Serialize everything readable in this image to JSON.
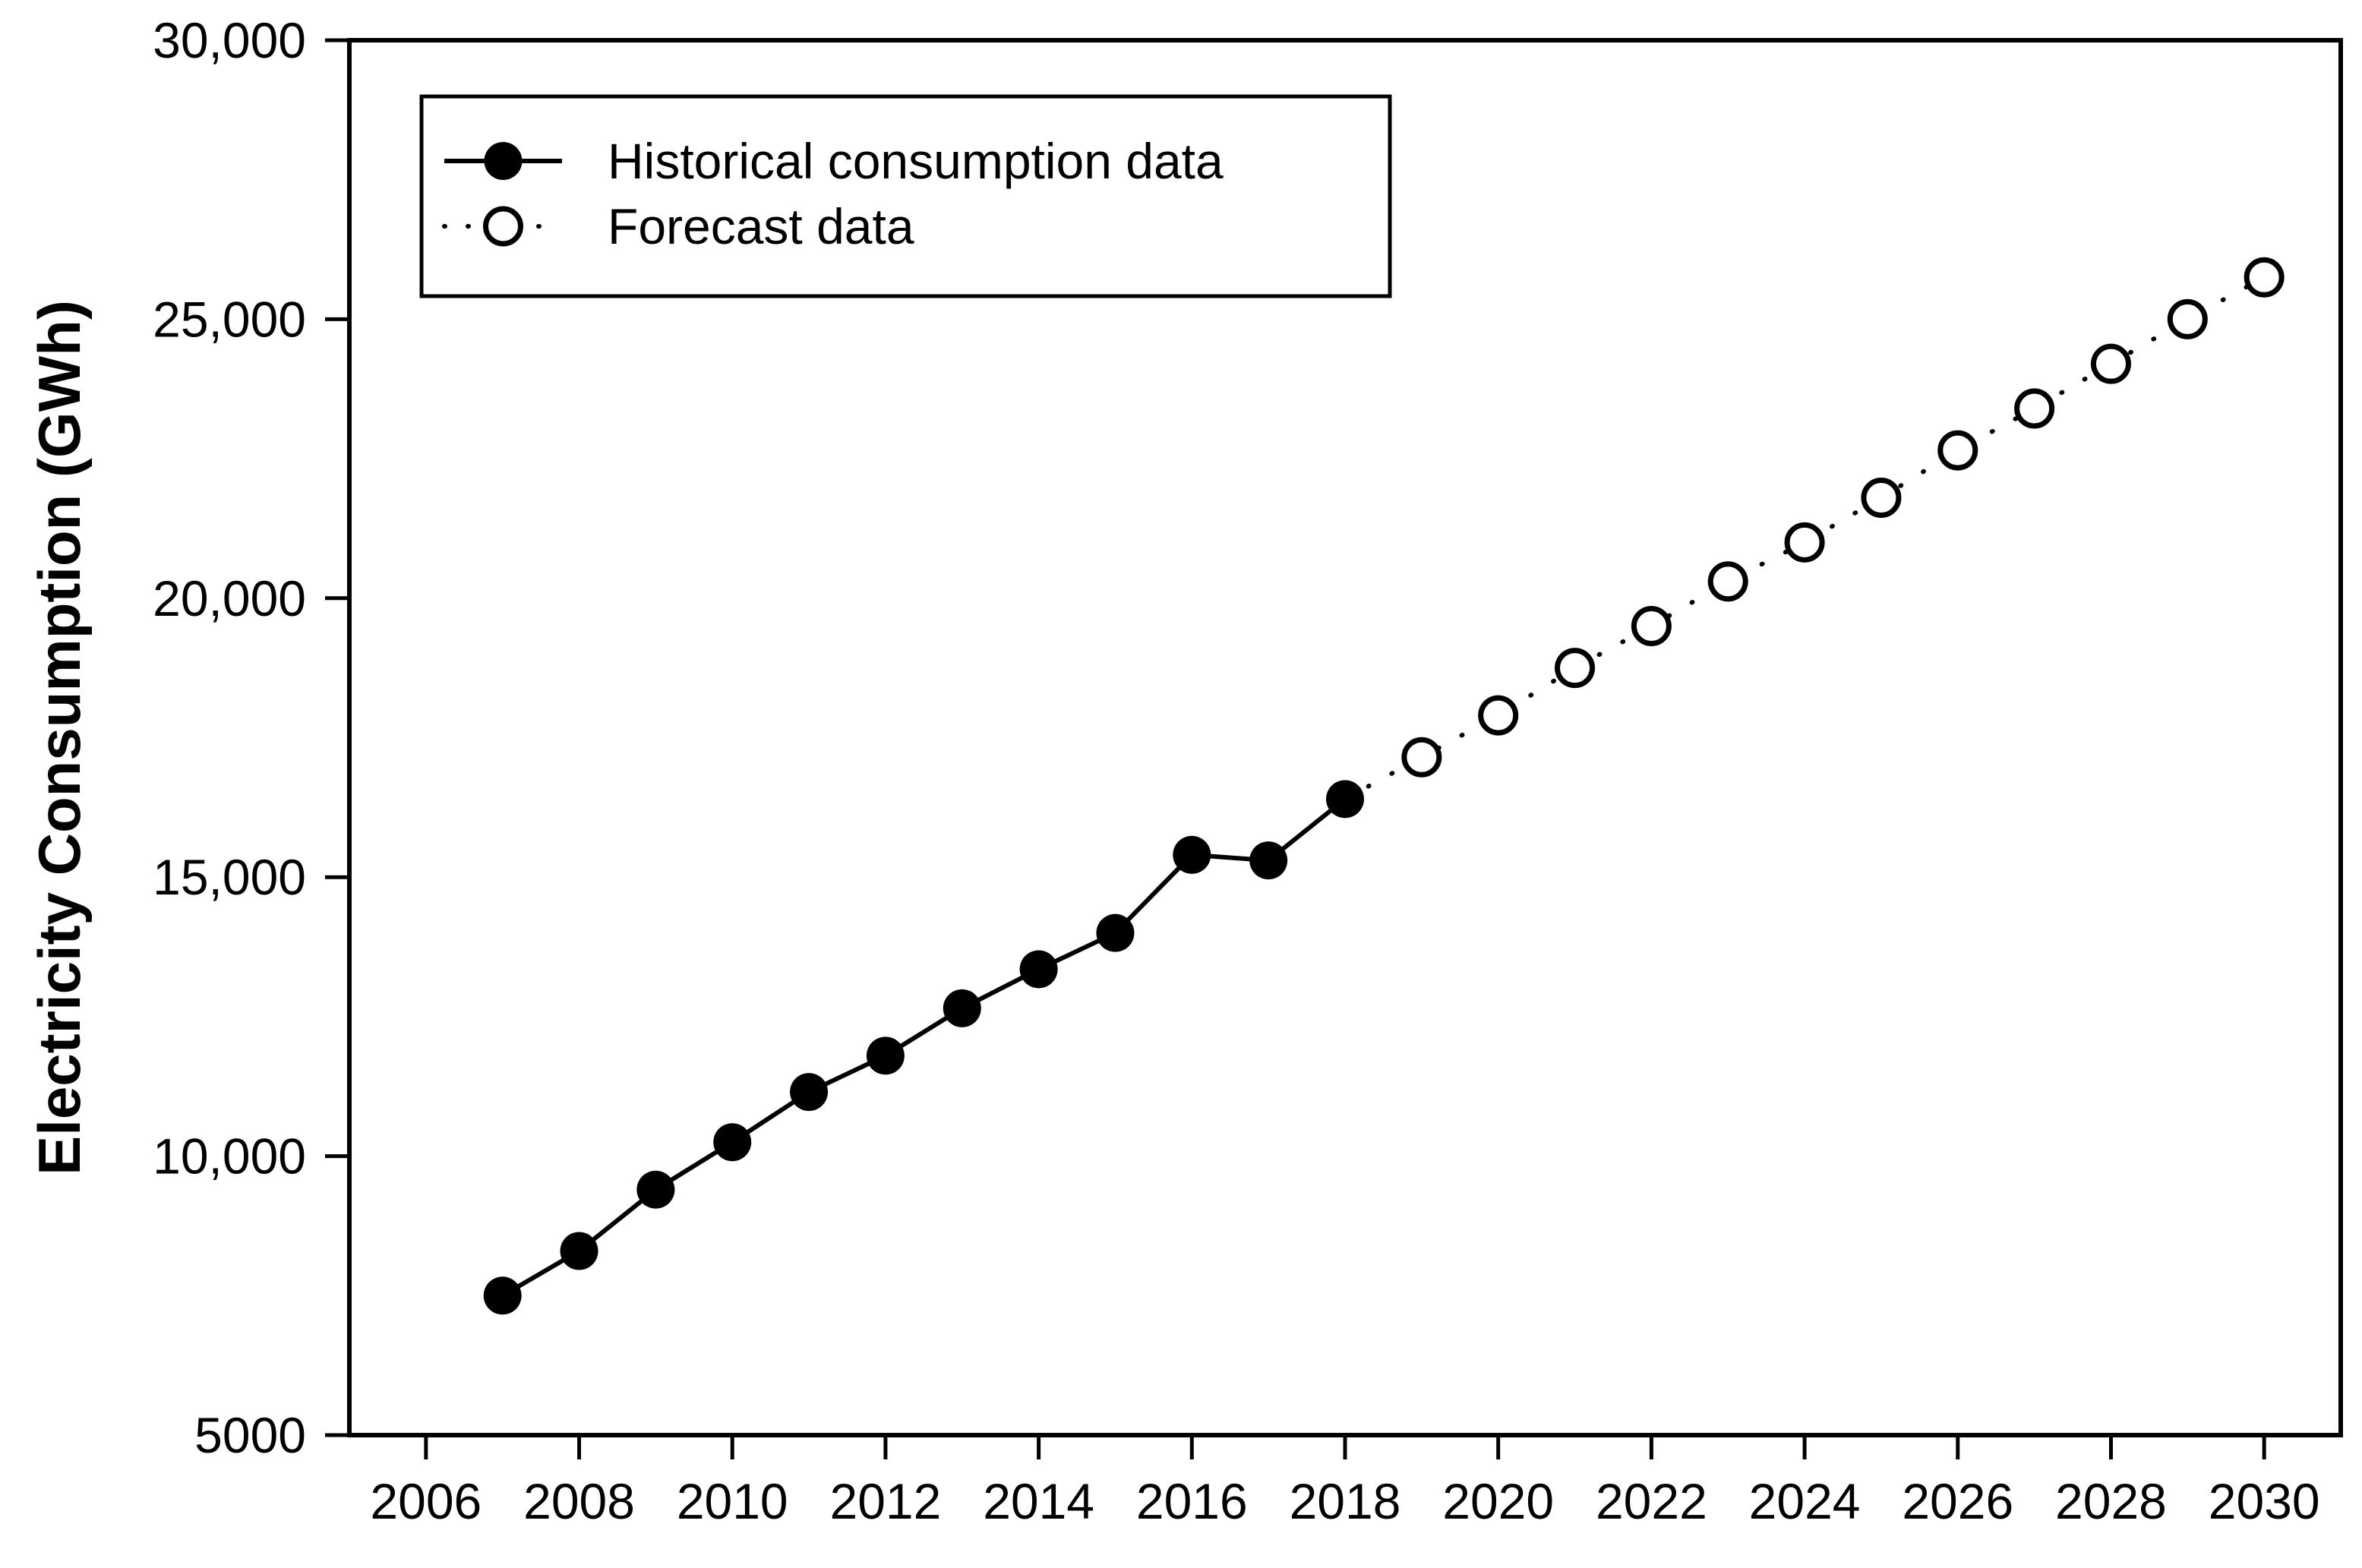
{
  "chart_data": {
    "type": "line",
    "title": "",
    "xlabel": "",
    "ylabel": "Electricity Consumption (GWh)",
    "xlim": [
      2005,
      2031
    ],
    "ylim": [
      5000,
      30000
    ],
    "grid": false,
    "legend_position": "top-left",
    "x_ticks": [
      2006,
      2008,
      2010,
      2012,
      2014,
      2016,
      2018,
      2020,
      2022,
      2024,
      2026,
      2028,
      2030
    ],
    "y_ticks": [
      {
        "value": 5000,
        "label": "5000"
      },
      {
        "value": 10000,
        "label": "10,000"
      },
      {
        "value": 15000,
        "label": "15,000"
      },
      {
        "value": 20000,
        "label": "20,000"
      },
      {
        "value": 25000,
        "label": "25,000"
      },
      {
        "value": 30000,
        "label": "30,000"
      }
    ],
    "series": [
      {
        "name": "Historical consumption data",
        "marker": "filled-circle",
        "line_style": "solid",
        "color": "#000000",
        "x": [
          2007,
          2008,
          2009,
          2010,
          2011,
          2012,
          2013,
          2014,
          2015,
          2016,
          2017,
          2018
        ],
        "y": [
          7500,
          8300,
          9400,
          10250,
          11150,
          11800,
          12650,
          13350,
          14000,
          15400,
          15300,
          16400
        ]
      },
      {
        "name": "Forecast data",
        "marker": "open-circle",
        "line_style": "dotted",
        "color": "#000000",
        "x": [
          2019,
          2020,
          2021,
          2022,
          2023,
          2024,
          2025,
          2026,
          2027,
          2028,
          2029,
          2030
        ],
        "y": [
          17150,
          17900,
          18750,
          19500,
          20300,
          21000,
          21800,
          22650,
          23400,
          24200,
          25000,
          25750
        ]
      }
    ]
  },
  "colors": {
    "background": "#ffffff",
    "foreground": "#000000"
  }
}
